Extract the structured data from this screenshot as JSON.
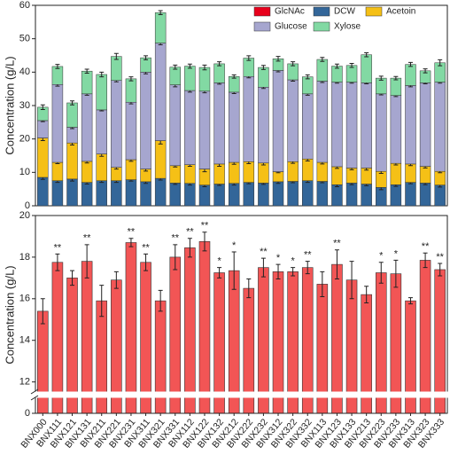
{
  "chart_data": [
    {
      "type": "stacked_bar",
      "ylabel": "Concentration (g/L)",
      "ylim": [
        0,
        60
      ],
      "yticks": [
        0,
        10,
        20,
        30,
        40,
        50,
        60
      ],
      "series": [
        {
          "name": "DCW",
          "color": "#336699",
          "values": [
            8.5,
            7.5,
            8.0,
            7.0,
            7.5,
            7.5,
            7.8,
            7.2,
            8.2,
            6.8,
            6.7,
            6.2,
            6.5,
            6.7,
            7.0,
            6.8,
            7.2,
            7.3,
            7.5,
            7.3,
            6.3,
            6.8,
            6.5,
            5.5,
            6.3,
            7.0,
            6.8,
            6.2
          ],
          "errors": [
            0.6,
            0.5,
            0.6,
            0.5,
            0.5,
            0.5,
            0.4,
            0.5,
            0.5,
            0.4,
            0.5,
            0.5,
            0.4,
            0.5,
            0.4,
            0.4,
            0.5,
            0.4,
            0.5,
            0.4,
            0.6,
            0.5,
            0.5,
            0.7,
            0.5,
            0.4,
            0.5,
            0.6
          ]
        },
        {
          "name": "Acetoin",
          "color": "#f5c016",
          "values": [
            11.8,
            5.5,
            10.8,
            6.3,
            8.0,
            4.0,
            6.0,
            3.8,
            11.3,
            5.2,
            5.6,
            4.8,
            6.0,
            6.3,
            6.2,
            6.0,
            3.0,
            5.9,
            6.5,
            5.7,
            5.4,
            4.5,
            4.8,
            4.8,
            6.4,
            5.5,
            5.0,
            4.1
          ],
          "errors": [
            0.8,
            0.4,
            0.6,
            0.5,
            0.7,
            0.5,
            0.5,
            0.6,
            1.0,
            0.4,
            0.5,
            0.8,
            0.7,
            0.6,
            0.6,
            0.6,
            0.3,
            0.5,
            0.6,
            0.5,
            0.5,
            0.5,
            0.6,
            0.6,
            0.5,
            0.5,
            0.5,
            0.4
          ]
        },
        {
          "name": "Glucose",
          "color": "#a6a6cf",
          "values": [
            5.2,
            23.3,
            4.7,
            20.2,
            13.2,
            26.0,
            17.2,
            29.0,
            29.2,
            24.2,
            22.2,
            23.3,
            24.3,
            21.0,
            25.5,
            22.7,
            30.3,
            24.5,
            19.5,
            24.3,
            25.3,
            25.7,
            25.5,
            23.2,
            20.3,
            23.5,
            25.0,
            26.7
          ],
          "errors": [
            0.3,
            0.5,
            0.4,
            0.4,
            0.3,
            0.4,
            0.5,
            0.5,
            0.5,
            0.6,
            0.5,
            0.5,
            0.4,
            0.4,
            0.4,
            0.4,
            0.4,
            0.4,
            0.4,
            0.4,
            0.3,
            0.3,
            0.3,
            0.3,
            0.3,
            0.4,
            0.3,
            0.3
          ]
        },
        {
          "name": "Xylose",
          "color": "#82d9a3",
          "values": [
            4.0,
            5.4,
            7.3,
            6.8,
            10.6,
            7.2,
            7.0,
            4.3,
            9.1,
            5.3,
            7.3,
            7.1,
            5.7,
            4.7,
            5.5,
            5.9,
            3.5,
            4.8,
            5.1,
            6.5,
            4.8,
            5.0,
            8.4,
            4.7,
            5.2,
            6.3,
            3.6,
            5.8
          ],
          "errors": [
            0.7,
            0.6,
            0.6,
            0.6,
            0.7,
            0.9,
            0.6,
            0.6,
            0.6,
            0.6,
            0.6,
            0.7,
            0.6,
            0.5,
            0.7,
            0.6,
            0.7,
            0.6,
            0.6,
            0.6,
            0.6,
            0.6,
            0.6,
            0.6,
            0.5,
            0.6,
            0.6,
            0.9
          ]
        }
      ]
    },
    {
      "type": "bar",
      "ylabel": "Concentration (g/L)",
      "ylim": [
        0,
        20
      ],
      "axis_break": [
        1,
        11.6
      ],
      "yticks": [
        0,
        12,
        14,
        16,
        18,
        20
      ],
      "categories": [
        "BNX000",
        "BNX111",
        "BNX121",
        "BNX131",
        "BNX211",
        "BNX221",
        "BNX231",
        "BNX311",
        "BNX321",
        "BNX331",
        "BNX112",
        "BNX122",
        "BNX132",
        "BNX212",
        "BNX222",
        "BNX232",
        "BNX312",
        "BNX322",
        "BNX332",
        "BNX113",
        "BNX123",
        "BNX133",
        "BNX213",
        "BNX223",
        "BNX233",
        "BNX313",
        "BNX323",
        "BNX333"
      ],
      "series": [
        {
          "name": "GlcNAc",
          "color": "#f25555",
          "legend_color": "#e8001c",
          "values": [
            15.4,
            17.75,
            17.0,
            17.8,
            15.9,
            16.9,
            18.7,
            17.75,
            15.9,
            18.0,
            18.45,
            18.75,
            17.25,
            17.35,
            16.5,
            17.5,
            17.3,
            17.3,
            17.5,
            16.7,
            17.65,
            16.9,
            16.2,
            17.25,
            17.2,
            15.9,
            17.85,
            17.4
          ],
          "errors": [
            0.6,
            0.4,
            0.35,
            0.8,
            0.75,
            0.4,
            0.2,
            0.4,
            0.5,
            0.6,
            0.45,
            0.45,
            0.25,
            0.9,
            0.45,
            0.45,
            0.35,
            0.2,
            0.3,
            0.6,
            0.7,
            0.9,
            0.4,
            0.5,
            0.65,
            0.15,
            0.35,
            0.3
          ],
          "significance": [
            null,
            "**",
            null,
            "**",
            null,
            null,
            "**",
            "**",
            null,
            "**",
            "**",
            "**",
            "*",
            "*",
            null,
            "**",
            "*",
            "*",
            "**",
            null,
            "**",
            null,
            null,
            "*",
            "*",
            null,
            "**",
            "**"
          ]
        }
      ]
    }
  ]
}
